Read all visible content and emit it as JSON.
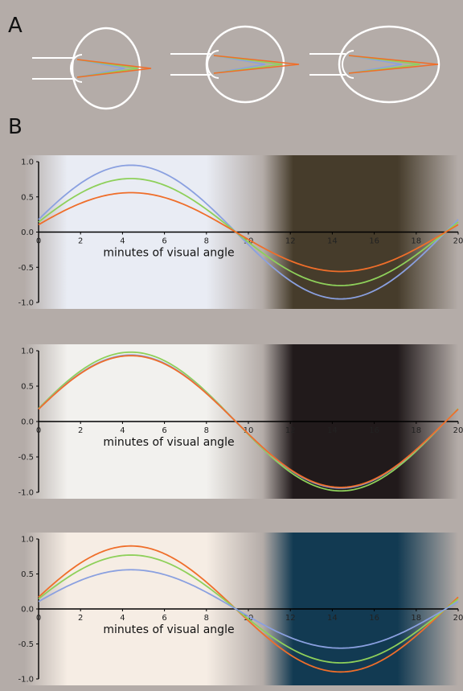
{
  "panels": {
    "a_label": "A",
    "b_label": "B"
  },
  "colors": {
    "background": "#b4aca8",
    "eye_outline": "#ffffff",
    "blue": "#8aa0e0",
    "green": "#8ed05a",
    "orange": "#ef6e2a",
    "axis": "#000000"
  },
  "diagram": {
    "eyes": [
      {
        "shape": "tall"
      },
      {
        "shape": "round"
      },
      {
        "shape": "wide"
      }
    ]
  },
  "chart_data": [
    {
      "type": "line",
      "xlabel": "minutes of visual angle",
      "xlim": [
        0,
        20
      ],
      "ylim": [
        -1.0,
        1.0
      ],
      "x_ticks": [
        "0",
        "2",
        "4",
        "6",
        "8",
        "10",
        "12",
        "14",
        "16",
        "18",
        "20"
      ],
      "y_ticks": [
        "1.0",
        "0.5",
        "0.0",
        "-0.5",
        "-1.0"
      ],
      "background": {
        "light": "#e9ecf4",
        "dark": "#463c2b"
      },
      "series": [
        {
          "color": "#8aa0e0",
          "amplitude": 0.95
        },
        {
          "color": "#8ed05a",
          "amplitude": 0.76
        },
        {
          "color": "#ef6e2a",
          "amplitude": 0.56
        }
      ]
    },
    {
      "type": "line",
      "xlabel": "minutes of visual angle",
      "xlim": [
        0,
        20
      ],
      "ylim": [
        -1.0,
        1.0
      ],
      "x_ticks": [
        "0",
        "2",
        "4",
        "6",
        "8",
        "10",
        "12",
        "14",
        "16",
        "18",
        "20"
      ],
      "y_ticks": [
        "1.0",
        "0.5",
        "0.0",
        "-0.5",
        "-1.0"
      ],
      "background": {
        "light": "#f2f1ee",
        "dark": "#211a1b"
      },
      "series": [
        {
          "color": "#8ed05a",
          "amplitude": 0.98
        },
        {
          "color": "#8aa0e0",
          "amplitude": 0.94
        },
        {
          "color": "#ef6e2a",
          "amplitude": 0.93
        }
      ]
    },
    {
      "type": "line",
      "xlabel": "minutes of visual angle",
      "xlim": [
        0,
        20
      ],
      "ylim": [
        -1.0,
        1.0
      ],
      "x_ticks": [
        "0",
        "2",
        "4",
        "6",
        "8",
        "10",
        "12",
        "14",
        "16",
        "18",
        "20"
      ],
      "y_ticks": [
        "1.0",
        "0.5",
        "0.0",
        "-0.5",
        "-1.0"
      ],
      "background": {
        "light": "#f6ede4",
        "dark": "#123a52"
      },
      "series": [
        {
          "color": "#ef6e2a",
          "amplitude": 0.9
        },
        {
          "color": "#8ed05a",
          "amplitude": 0.77
        },
        {
          "color": "#8aa0e0",
          "amplitude": 0.56
        }
      ]
    }
  ]
}
